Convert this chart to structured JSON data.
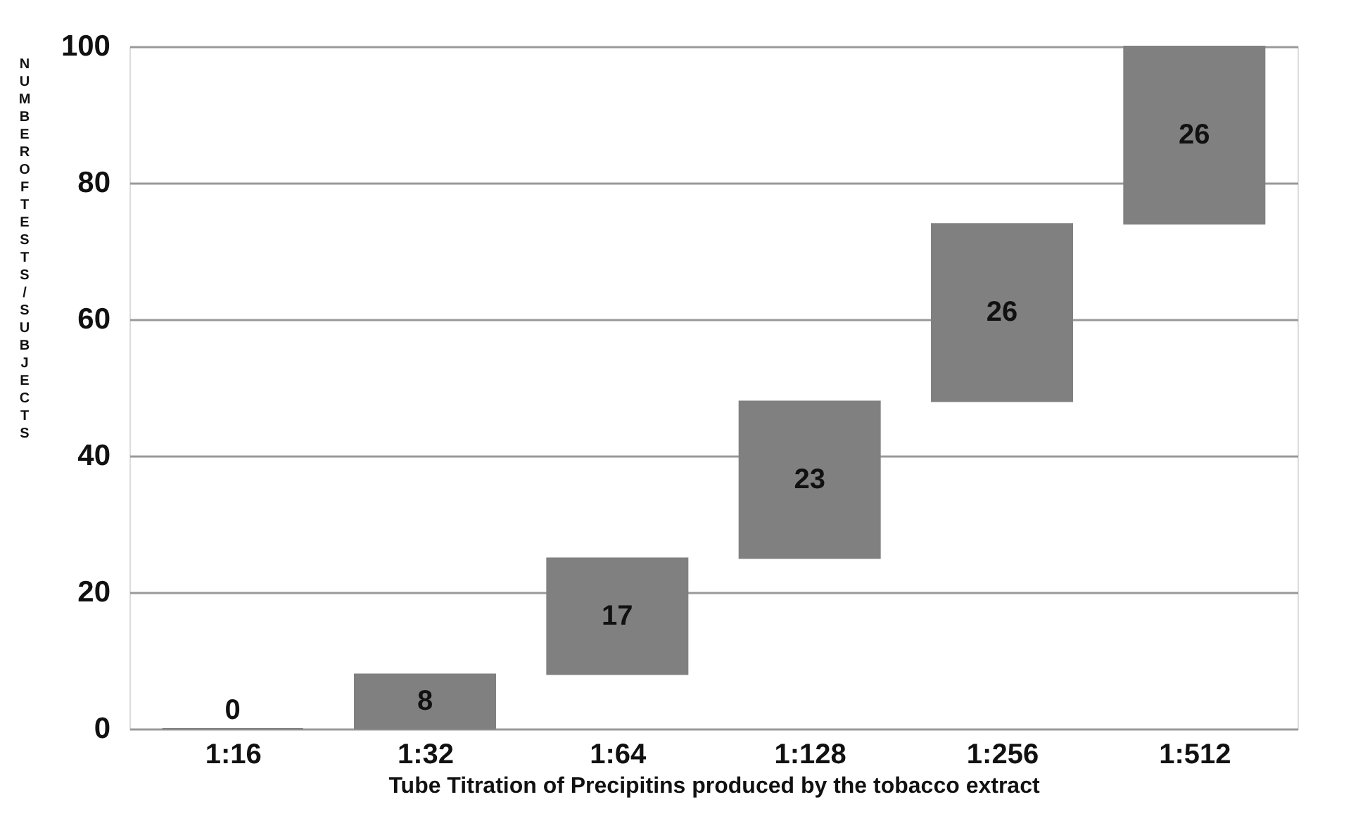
{
  "chart_data": {
    "type": "bar",
    "xlabel": "Tube Titration of Precipitins produced by the tobacco extract",
    "ylabel": "NUMBER OF TESTS/SUBJECTS",
    "categories": [
      "1:16",
      "1:32",
      "1:64",
      "1:128",
      "1:256",
      "1:512"
    ],
    "values": [
      0,
      8,
      17,
      23,
      26,
      26
    ],
    "base": [
      0,
      0,
      8,
      25,
      48,
      74
    ],
    "color": "#808080",
    "ylim": [
      0,
      100
    ],
    "yticks": [
      0,
      20,
      40,
      60,
      80,
      100
    ],
    "grid": "y",
    "data_labels": true
  }
}
